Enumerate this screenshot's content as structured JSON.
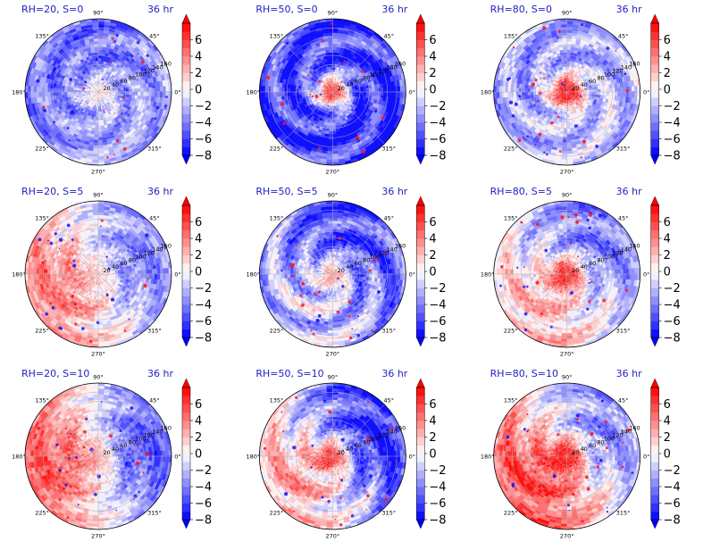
{
  "figure": {
    "rows": 3,
    "cols": 3,
    "colormap": {
      "name": "bwr",
      "levels": [
        -8,
        -7,
        -6,
        -5,
        -4,
        -3,
        -2,
        -1,
        0,
        1,
        2,
        3,
        4,
        5,
        6,
        7
      ],
      "tick_values": [
        -8,
        -6,
        -4,
        -2,
        0,
        2,
        4,
        6
      ],
      "tick_labels": [
        "−8",
        "−6",
        "−4",
        "−2",
        "0",
        "2",
        "4",
        "6"
      ],
      "extend": "both",
      "low_color": "#0000ff",
      "high_color": "#ff0000",
      "mid_color": "#ffffff"
    },
    "angular_tick_labels": [
      "0°",
      "45°",
      "90°",
      "135°",
      "180°",
      "225°",
      "270°",
      "315°"
    ],
    "radial_tick_labels": [
      "20",
      "40",
      "60",
      "80",
      "100",
      "120",
      "140",
      "160"
    ],
    "time_label": "36 hr",
    "label_color": "#1f1fbf"
  },
  "chart_data": [
    {
      "type": "heatmap",
      "projection": "polar",
      "title": "RH=20, S=0",
      "time": "36 hr",
      "rmax": 160,
      "center_value": 1.0,
      "outer_value": -3.5,
      "asymmetry": 0.8,
      "asym_phase_deg": 300,
      "spiral": 1.0
    },
    {
      "type": "heatmap",
      "projection": "polar",
      "title": "RH=50, S=0",
      "time": "36 hr",
      "rmax": 160,
      "center_value": 7.0,
      "outer_value": -6.0,
      "asymmetry": 0.4,
      "asym_phase_deg": 120,
      "spiral": 1.6
    },
    {
      "type": "heatmap",
      "projection": "polar",
      "title": "RH=80, S=0",
      "time": "36 hr",
      "rmax": 160,
      "center_value": 9.0,
      "outer_value": -2.5,
      "asymmetry": 0.5,
      "asym_phase_deg": 300,
      "spiral": 1.2
    },
    {
      "type": "heatmap",
      "projection": "polar",
      "title": "RH=20, S=5",
      "time": "36 hr",
      "rmax": 160,
      "center_value": 1.5,
      "outer_value": 0.0,
      "asymmetry": 3.8,
      "asym_phase_deg": 200,
      "spiral": 0.8
    },
    {
      "type": "heatmap",
      "projection": "polar",
      "title": "RH=50, S=5",
      "time": "36 hr",
      "rmax": 160,
      "center_value": 3.0,
      "outer_value": -3.5,
      "asymmetry": 2.0,
      "asym_phase_deg": 240,
      "spiral": 1.5
    },
    {
      "type": "heatmap",
      "projection": "polar",
      "title": "RH=80, S=5",
      "time": "36 hr",
      "rmax": 160,
      "center_value": 8.0,
      "outer_value": -1.0,
      "asymmetry": 3.0,
      "asym_phase_deg": 230,
      "spiral": 1.0
    },
    {
      "type": "heatmap",
      "projection": "polar",
      "title": "RH=20, S=10",
      "time": "36 hr",
      "rmax": 160,
      "center_value": 3.0,
      "outer_value": 0.0,
      "asymmetry": 5.0,
      "asym_phase_deg": 190,
      "spiral": 0.6
    },
    {
      "type": "heatmap",
      "projection": "polar",
      "title": "RH=50, S=10",
      "time": "36 hr",
      "rmax": 160,
      "center_value": 7.0,
      "outer_value": -2.0,
      "asymmetry": 4.5,
      "asym_phase_deg": 210,
      "spiral": 1.3
    },
    {
      "type": "heatmap",
      "projection": "polar",
      "title": "RH=80, S=10",
      "time": "36 hr",
      "rmax": 160,
      "center_value": 9.0,
      "outer_value": 1.0,
      "asymmetry": 4.5,
      "asym_phase_deg": 215,
      "spiral": 1.0
    }
  ]
}
